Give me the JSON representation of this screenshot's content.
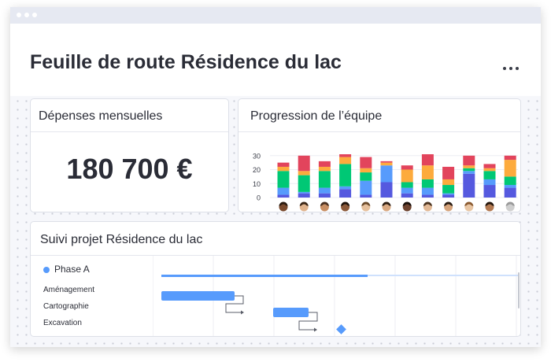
{
  "page": {
    "title": "Feuille de route Résidence du lac"
  },
  "expenses_card": {
    "title": "Dépenses mensuelles",
    "value": "180 700 €"
  },
  "team_card": {
    "title": "Progression de l’équipe",
    "members": [
      {
        "skin": "#7a4a2e",
        "hair": "#2a1a10"
      },
      {
        "skin": "#e0b48e",
        "hair": "#3a2616"
      },
      {
        "skin": "#c98f64",
        "hair": "#4a3020"
      },
      {
        "skin": "#8c5a3a",
        "hair": "#1e120a"
      },
      {
        "skin": "#e6c09c",
        "hair": "#6b4a2a"
      },
      {
        "skin": "#d9a982",
        "hair": "#2e1e12"
      },
      {
        "skin": "#6e4430",
        "hair": "#1a100a"
      },
      {
        "skin": "#e2b996",
        "hair": "#4c3420"
      },
      {
        "skin": "#d6a47c",
        "hair": "#2a1c12"
      },
      {
        "skin": "#e8c6a4",
        "hair": "#8a5a30"
      },
      {
        "skin": "#b37a52",
        "hair": "#24160c"
      },
      {
        "skin": "#cfcfcf",
        "hair": "#9a9a9a"
      }
    ]
  },
  "chart_data": {
    "type": "bar",
    "stacked": true,
    "categories": [
      "",
      "",
      "",
      "",
      "",
      "",
      "",
      "",
      "",
      "",
      "",
      ""
    ],
    "yticks": [
      0,
      10,
      20,
      30
    ],
    "ylim": [
      0,
      31
    ],
    "grid": true,
    "series": [
      {
        "color": "#5559df",
        "values": [
          2,
          3,
          3,
          6,
          2,
          11,
          3,
          2,
          2,
          17,
          9,
          7
        ]
      },
      {
        "color": "#579bfc",
        "values": [
          5,
          1,
          4,
          2,
          10,
          12,
          4,
          5,
          1,
          2,
          4,
          2
        ]
      },
      {
        "color": "#00c875",
        "values": [
          12,
          12,
          12,
          16,
          6,
          0,
          4,
          6,
          6,
          2,
          6,
          6
        ]
      },
      {
        "color": "#fdab3d",
        "values": [
          3,
          3,
          3,
          5,
          3,
          2,
          9,
          10,
          4,
          2,
          2,
          12
        ]
      },
      {
        "color": "#e2445c",
        "values": [
          3,
          11,
          4,
          2,
          8,
          1,
          3,
          8,
          9,
          7,
          3,
          3
        ]
      }
    ]
  },
  "project_card": {
    "title": "Suivi projet Résidence du lac",
    "phase": "Phase A",
    "phase_color": "#579bfc",
    "tasks": [
      "Aménagement",
      "Cartographie",
      "Excavation"
    ]
  },
  "colors": {
    "accent": "#579bfc",
    "text": "#2a2c36"
  }
}
